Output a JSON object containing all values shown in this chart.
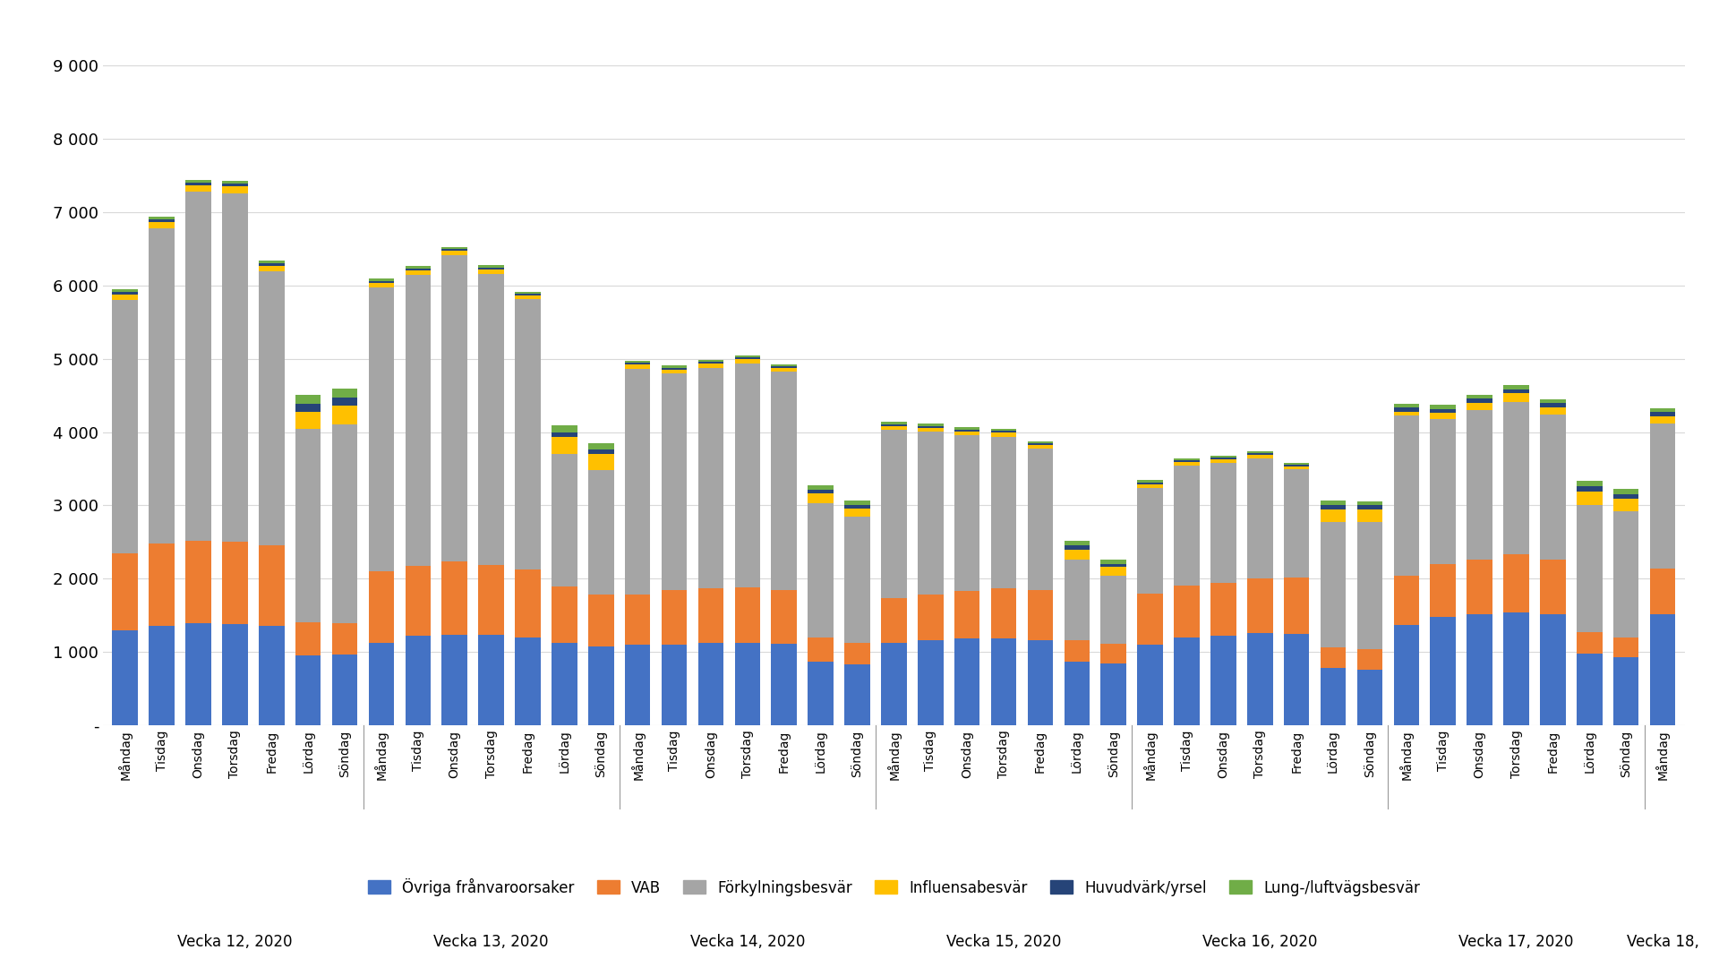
{
  "weeks": [
    {
      "label": "Vecka 12, 2020",
      "days": [
        "Måndag",
        "Tisdag",
        "Onsdag",
        "Torsdag",
        "Fredag",
        "Lördag",
        "Söndag"
      ]
    },
    {
      "label": "Vecka 13, 2020",
      "days": [
        "Måndag",
        "Tisdag",
        "Onsdag",
        "Torsdag",
        "Fredag",
        "Lördag",
        "Söndag"
      ]
    },
    {
      "label": "Vecka 14, 2020",
      "days": [
        "Måndag",
        "Tisdag",
        "Onsdag",
        "Torsdag",
        "Fredag",
        "Lördag",
        "Söndag"
      ]
    },
    {
      "label": "Vecka 15, 2020",
      "days": [
        "Måndag",
        "Tisdag",
        "Onsdag",
        "Torsdag",
        "Fredag",
        "Lördag",
        "Söndag"
      ]
    },
    {
      "label": "Vecka 16, 2020",
      "days": [
        "Måndag",
        "Tisdag",
        "Onsdag",
        "Torsdag",
        "Fredag",
        "Lördag",
        "Söndag"
      ]
    },
    {
      "label": "Vecka 17, 2020",
      "days": [
        "Måndag",
        "Tisdag",
        "Onsdag",
        "Torsdag",
        "Fredag",
        "Lördag",
        "Söndag"
      ]
    },
    {
      "label": "Vecka 18,",
      "days": [
        "Måndag"
      ]
    }
  ],
  "series": {
    "Övriga frånvaroorsaker": {
      "color": "#4472C4",
      "values": [
        1300,
        1360,
        1390,
        1380,
        1360,
        950,
        960,
        1130,
        1220,
        1230,
        1230,
        1200,
        1130,
        1080,
        1100,
        1100,
        1120,
        1120,
        1110,
        870,
        830,
        1130,
        1160,
        1190,
        1190,
        1160,
        870,
        840,
        1100,
        1200,
        1220,
        1260,
        1250,
        780,
        760,
        1370,
        1480,
        1520,
        1540,
        1510,
        980,
        930,
        1520
      ]
    },
    "VAB": {
      "color": "#ED7D31",
      "values": [
        1050,
        1120,
        1130,
        1120,
        1100,
        450,
        430,
        970,
        960,
        1000,
        960,
        920,
        760,
        700,
        680,
        750,
        750,
        760,
        740,
        330,
        290,
        600,
        620,
        640,
        680,
        680,
        290,
        270,
        700,
        700,
        720,
        740,
        760,
        280,
        280,
        670,
        720,
        740,
        790,
        750,
        290,
        270,
        620
      ]
    },
    "Förkylningsbesvär": {
      "color": "#A5A5A5",
      "values": [
        3450,
        4300,
        4760,
        4760,
        3730,
        2640,
        2710,
        3870,
        3970,
        4180,
        3970,
        3690,
        1810,
        1700,
        3080,
        2950,
        3010,
        3060,
        2980,
        1830,
        1730,
        2300,
        2230,
        2130,
        2070,
        1940,
        1100,
        930,
        1440,
        1640,
        1640,
        1640,
        1480,
        1710,
        1730,
        2190,
        1980,
        2040,
        2080,
        1980,
        1730,
        1720,
        1980
      ]
    },
    "Influensabesvär": {
      "color": "#FFC000",
      "values": [
        80,
        90,
        90,
        100,
        80,
        230,
        260,
        70,
        60,
        60,
        60,
        50,
        230,
        220,
        60,
        55,
        55,
        55,
        45,
        130,
        110,
        55,
        50,
        50,
        50,
        40,
        140,
        120,
        50,
        50,
        50,
        50,
        40,
        180,
        175,
        50,
        80,
        100,
        120,
        100,
        190,
        170,
        100
      ]
    },
    "Huvudvärk/yrsel": {
      "color": "#264478",
      "values": [
        30,
        30,
        30,
        30,
        30,
        110,
        110,
        25,
        25,
        25,
        25,
        25,
        70,
        65,
        25,
        25,
        25,
        25,
        25,
        50,
        45,
        25,
        25,
        25,
        25,
        25,
        50,
        45,
        25,
        25,
        25,
        25,
        25,
        60,
        55,
        55,
        55,
        55,
        55,
        55,
        70,
        65,
        55
      ]
    },
    "Lung-/luftvägsbesvär": {
      "color": "#70AD47",
      "values": [
        35,
        35,
        35,
        35,
        35,
        130,
        125,
        30,
        30,
        30,
        30,
        30,
        90,
        85,
        30,
        28,
        28,
        28,
        28,
        65,
        60,
        28,
        28,
        28,
        28,
        28,
        65,
        60,
        28,
        28,
        28,
        28,
        28,
        55,
        55,
        55,
        55,
        55,
        55,
        55,
        75,
        72,
        55
      ]
    }
  },
  "ylim": [
    0,
    9500
  ],
  "yticks": [
    0,
    1000,
    2000,
    3000,
    4000,
    5000,
    6000,
    7000,
    8000,
    9000
  ],
  "ytick_labels": [
    "-",
    "1 000",
    "2 000",
    "3 000",
    "4 000",
    "5 000",
    "6 000",
    "7 000",
    "8 000",
    "9 000"
  ],
  "background_color": "#FFFFFF",
  "grid_color": "#D9D9D9",
  "bar_width": 0.7,
  "figsize": [
    19.2,
    10.8
  ],
  "dpi": 100
}
